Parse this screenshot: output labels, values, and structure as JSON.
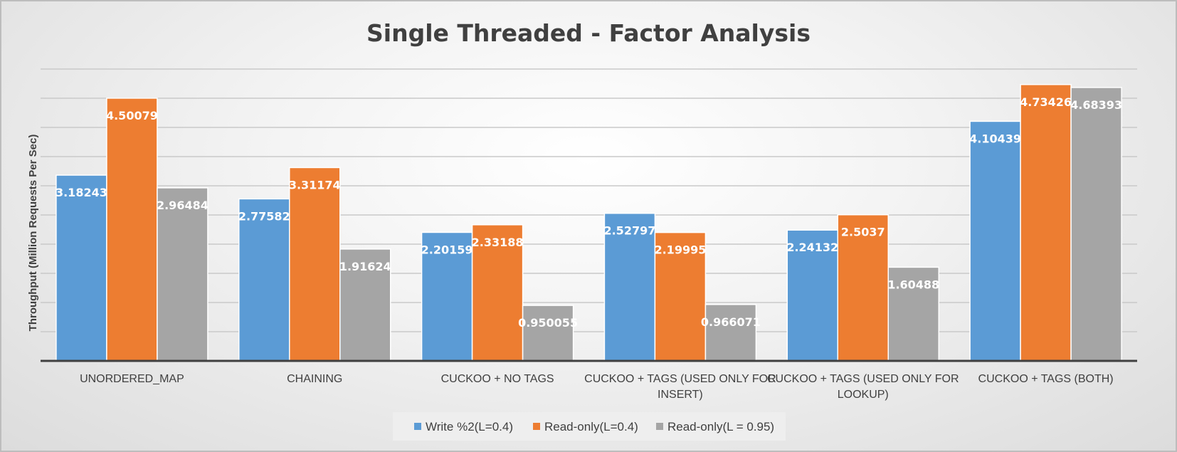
{
  "chart_data": {
    "type": "bar",
    "title": "Single Threaded - Factor Analysis",
    "ylabel": "Throughput (Million Requests Per Sec)",
    "xlabel": "",
    "ylim": [
      0,
      5
    ],
    "grid": true,
    "legend_position": "bottom",
    "categories": [
      [
        "UNORDERED_MAP"
      ],
      [
        "CHAINING"
      ],
      [
        "CUCKOO + NO TAGS"
      ],
      [
        "CUCKOO + TAGS (USED ONLY FOR",
        "INSERT)"
      ],
      [
        "CUCKOO + TAGS (USED ONLY FOR",
        "LOOKUP)"
      ],
      [
        "CUCKOO + TAGS (BOTH)"
      ]
    ],
    "series": [
      {
        "name": "Write %2(L=0.4)",
        "color": "#5b9bd5",
        "values": [
          3.18243,
          2.77582,
          2.20159,
          2.52797,
          2.24132,
          4.10439
        ],
        "labels": [
          "3.18243",
          "2.77582",
          "2.20159",
          "2.52797",
          "2.24132",
          "4.10439"
        ]
      },
      {
        "name": "Read-only(L=0.4)",
        "color": "#ed7d31",
        "values": [
          4.50079,
          3.31174,
          2.33188,
          2.19995,
          2.5037,
          4.73426
        ],
        "labels": [
          "4.50079",
          "3.31174",
          "2.33188",
          "2.19995",
          "2.5037",
          "4.73426"
        ]
      },
      {
        "name": "Read-only(L = 0.95)",
        "color": "#a5a5a5",
        "values": [
          2.96484,
          1.91624,
          0.950055,
          0.966071,
          1.60488,
          4.68393
        ],
        "labels": [
          "2.96484",
          "1.91624",
          "0.950055",
          "0.966071",
          "1.60488",
          "4.68393"
        ]
      }
    ]
  }
}
